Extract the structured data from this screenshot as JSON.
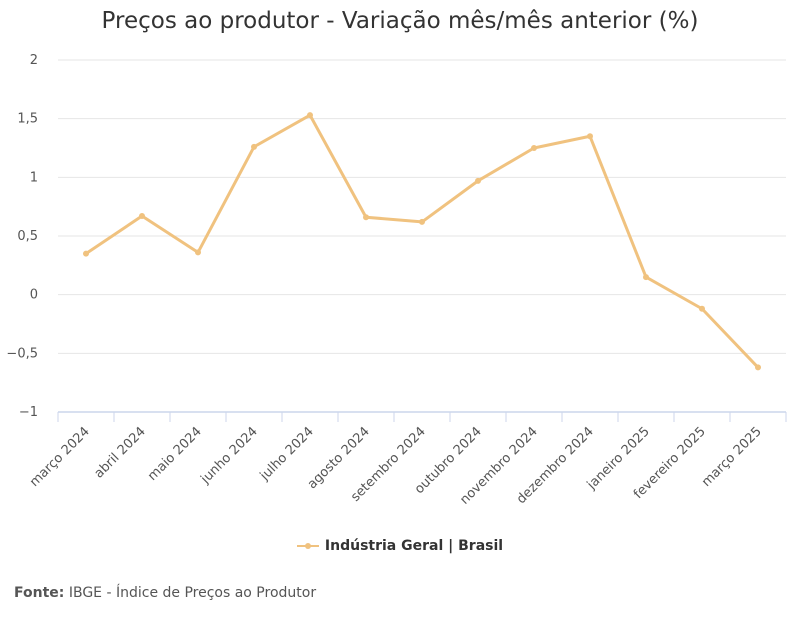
{
  "chart_data": {
    "type": "line",
    "title": "Preços ao produtor - Variação mês/mês anterior (%)",
    "categories": [
      "março 2024",
      "abril 2024",
      "maio 2024",
      "junho 2024",
      "julho 2024",
      "agosto 2024",
      "setembro 2024",
      "outubro 2024",
      "novembro 2024",
      "dezembro 2024",
      "janeiro 2025",
      "fevereiro 2025",
      "março 2025"
    ],
    "series": [
      {
        "name": "Indústria Geral | Brasil",
        "values": [
          0.35,
          0.67,
          0.36,
          1.26,
          1.53,
          0.66,
          0.62,
          0.97,
          1.25,
          1.35,
          0.15,
          -0.12,
          -0.62
        ]
      }
    ],
    "ylim": [
      -1,
      2
    ],
    "yticks": [
      2,
      1.5,
      1,
      0.5,
      0,
      -0.5,
      -1
    ],
    "ytick_labels": [
      "2",
      "1,5",
      "1",
      "0,5",
      "0",
      "−0,5",
      "−1"
    ],
    "grid": true,
    "legend_position": "bottom-center",
    "color": "#f0c27f"
  },
  "source": {
    "label": "Fonte:",
    "text": "IBGE - Índice de Preços ao Produtor"
  }
}
